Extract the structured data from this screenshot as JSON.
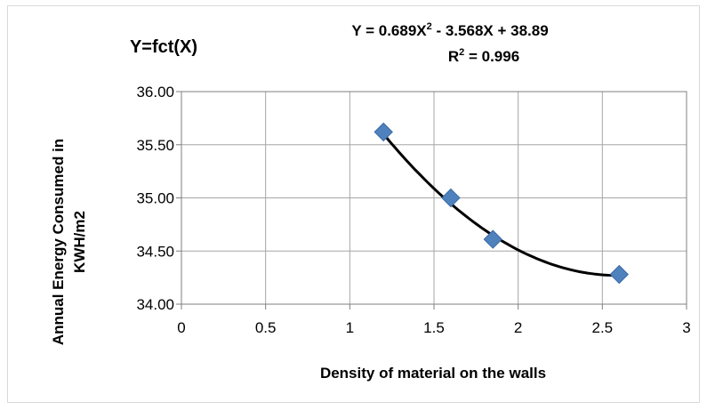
{
  "chart_data": {
    "type": "scatter",
    "title": "Y=fct(X)",
    "equation": {
      "main": "Y = 0.689X",
      "sup": "2",
      "rest": " - 3.568X + 38.89"
    },
    "r_squared": {
      "main": "R",
      "sup": "2",
      "rest": " = 0.996"
    },
    "xlabel": "Density of  material on the walls",
    "ylabel_lines": [
      "Annual  Energy Consumed in",
      "KWH/m2"
    ],
    "xlim": [
      0,
      3
    ],
    "ylim": [
      34.0,
      36.0
    ],
    "x_ticks": [
      0,
      0.5,
      1,
      1.5,
      2,
      2.5,
      3
    ],
    "x_tick_labels": [
      "0",
      "0.5",
      "1",
      "1.5",
      "2",
      "2.5",
      "3"
    ],
    "y_ticks": [
      34.0,
      34.5,
      35.0,
      35.5,
      36.0
    ],
    "y_tick_labels": [
      "34.00",
      "34.50",
      "35.00",
      "35.50",
      "36.00"
    ],
    "grid": true,
    "series": [
      {
        "marker": "diamond",
        "color": "#4f81bd",
        "points": [
          {
            "x": 1.2,
            "y": 35.62
          },
          {
            "x": 1.6,
            "y": 35.0
          },
          {
            "x": 1.85,
            "y": 34.61
          },
          {
            "x": 2.6,
            "y": 34.28
          }
        ]
      }
    ],
    "trendline": {
      "type": "polynomial",
      "coefficients": [
        0.689,
        -3.568,
        38.89
      ],
      "x_range": [
        1.2,
        2.6
      ],
      "color": "#000000"
    }
  }
}
